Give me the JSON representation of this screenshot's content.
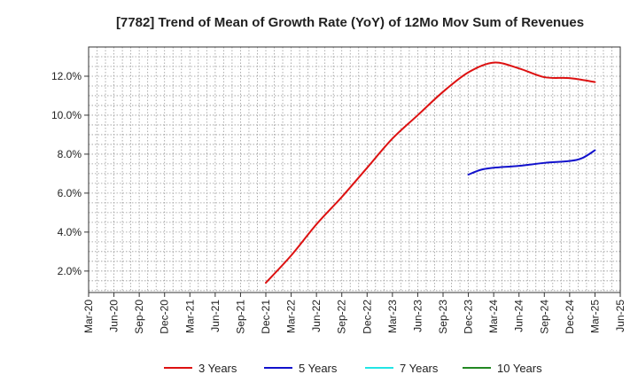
{
  "chart_data": {
    "type": "line",
    "title": "[7782]  Trend of Mean of Growth Rate (YoY) of 12Mo Mov Sum of Revenues",
    "xlabel": "",
    "ylabel": "",
    "x_ticks": [
      "Mar-20",
      "Jun-20",
      "Sep-20",
      "Dec-20",
      "Mar-21",
      "Jun-21",
      "Sep-21",
      "Dec-21",
      "Mar-22",
      "Jun-22",
      "Sep-22",
      "Dec-22",
      "Mar-23",
      "Jun-23",
      "Sep-23",
      "Dec-23",
      "Mar-24",
      "Jun-24",
      "Sep-24",
      "Dec-24",
      "Mar-25",
      "Jun-25"
    ],
    "y_ticks": [
      "2.0%",
      "4.0%",
      "6.0%",
      "8.0%",
      "10.0%",
      "12.0%"
    ],
    "y_tick_values": [
      2,
      4,
      6,
      8,
      10,
      12
    ],
    "ylim": [
      0.9,
      13.5
    ],
    "x_range_quarters": [
      0,
      21
    ],
    "grid": true,
    "legend_position": "bottom",
    "series": [
      {
        "name": "3 Years",
        "color": "#dd1111",
        "points": [
          [
            7,
            1.4
          ],
          [
            8,
            2.8
          ],
          [
            9,
            4.4
          ],
          [
            10,
            5.8
          ],
          [
            11,
            7.3
          ],
          [
            12,
            8.8
          ],
          [
            13,
            10.0
          ],
          [
            14,
            11.2
          ],
          [
            15,
            12.2
          ],
          [
            16,
            12.7
          ],
          [
            17,
            12.4
          ],
          [
            18,
            11.95
          ],
          [
            19,
            11.9
          ],
          [
            20,
            11.7
          ]
        ]
      },
      {
        "name": "5 Years",
        "color": "#1111cc",
        "points": [
          [
            15,
            6.95
          ],
          [
            15.5,
            7.2
          ],
          [
            16,
            7.3
          ],
          [
            17,
            7.4
          ],
          [
            18,
            7.55
          ],
          [
            19,
            7.65
          ],
          [
            19.5,
            7.8
          ],
          [
            20,
            8.2
          ]
        ]
      },
      {
        "name": "7 Years",
        "color": "#22e5e5",
        "points": []
      },
      {
        "name": "10 Years",
        "color": "#228822",
        "points": []
      }
    ]
  }
}
